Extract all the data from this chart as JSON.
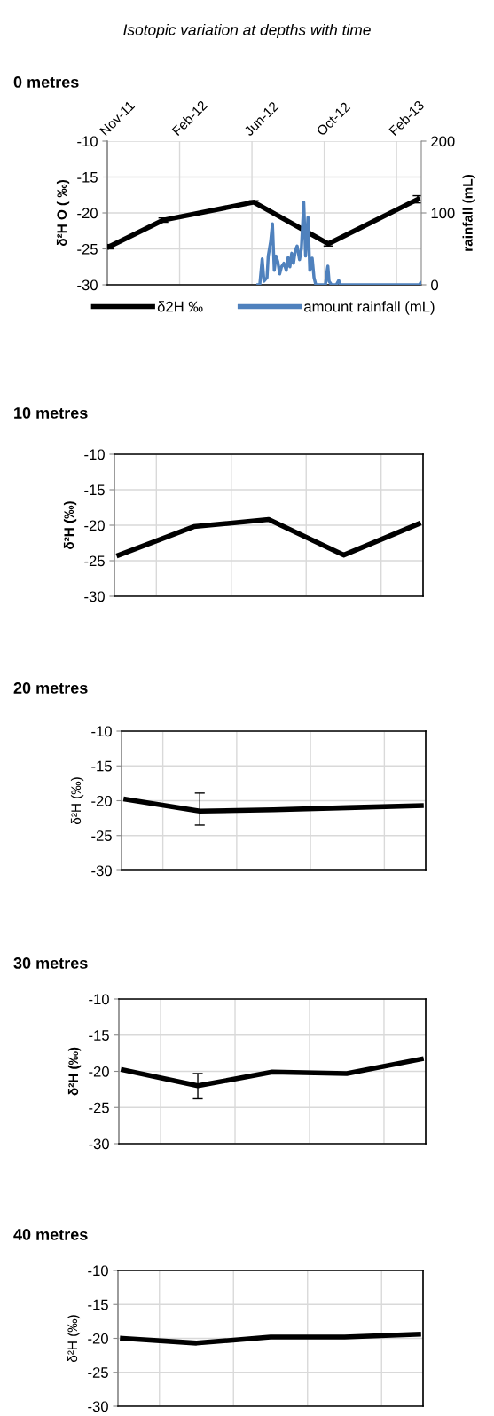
{
  "chart_data": [
    {
      "type": "line",
      "title": "Isotopic variation at depths with time",
      "subtitle": "0 metres",
      "ylabel": "δ²H O ( ‰)",
      "y2label": "rainfall (mL)",
      "xlim": [
        "2011-11-01",
        "2013-04-05"
      ],
      "xticks": [
        {
          "value": "2011-11-01",
          "label": "Nov-11"
        },
        {
          "value": "2012-02-29",
          "label": "Feb-12"
        },
        {
          "value": "2012-06-28",
          "label": "Jun-12"
        },
        {
          "value": "2012-10-26",
          "label": "Oct-12"
        },
        {
          "value": "2013-02-23",
          "label": "Feb-13"
        }
      ],
      "ylim": [
        -30,
        -10
      ],
      "yticks": [
        -30,
        -25,
        -20,
        -15,
        -10
      ],
      "y2lim": [
        0,
        200
      ],
      "y2ticks": [
        0,
        100,
        200
      ],
      "grid": true,
      "legend": "bottom",
      "marker": "none",
      "line_style": "solid",
      "series": [
        {
          "name": "δ2H ‰",
          "color": "#000000",
          "x": [
            "2011-11-04",
            "2012-02-02",
            "2012-07-01",
            "2012-11-02",
            "2013-03-30"
          ],
          "values": [
            -24.7,
            -21.0,
            -18.5,
            -24.3,
            -18.1
          ],
          "errors": [
            0.3,
            0.3,
            0.2,
            0.3,
            0.5
          ]
        },
        {
          "name": "amount rainfall (mL)",
          "color": "#4f81bd",
          "axis": "y2",
          "x": [
            "2012-07-08",
            "2012-07-11",
            "2012-07-15",
            "2012-07-18",
            "2012-07-23",
            "2012-07-25",
            "2012-07-29",
            "2012-08-01",
            "2012-08-04",
            "2012-08-07",
            "2012-08-10",
            "2012-08-13",
            "2012-08-16",
            "2012-08-20",
            "2012-08-24",
            "2012-08-27",
            "2012-08-30",
            "2012-09-02",
            "2012-09-05",
            "2012-09-08",
            "2012-09-11",
            "2012-09-15",
            "2012-09-18",
            "2012-09-22",
            "2012-09-25",
            "2012-09-29",
            "2012-10-02",
            "2012-10-06",
            "2012-10-09",
            "2012-10-12",
            "2012-10-28",
            "2012-10-30",
            "2012-11-01",
            "2012-11-03",
            "2012-11-07",
            "2012-11-15",
            "2012-11-19",
            "2012-11-22",
            "2013-04-02",
            "2013-04-04"
          ],
          "values": [
            0,
            0,
            36,
            5,
            10,
            40,
            60,
            85,
            20,
            40,
            32,
            15,
            25,
            30,
            20,
            38,
            25,
            44,
            30,
            48,
            54,
            35,
            50,
            115,
            40,
            94,
            20,
            37,
            10,
            0,
            0,
            15,
            26,
            5,
            0,
            0,
            6,
            0,
            0,
            3
          ]
        }
      ]
    },
    {
      "type": "line",
      "title": "10 metres",
      "ylabel": "δ²H (‰)",
      "tick_labels": "y",
      "categories": [
        null,
        null,
        null,
        null,
        null
      ],
      "ylim": [
        -30,
        -10
      ],
      "yticks": [
        -30,
        -25,
        -20,
        -15,
        -10
      ],
      "grid": true,
      "marker": "none",
      "line_style": "solid",
      "series": [
        {
          "color": "#000000",
          "values": [
            -24.2,
            -20.2,
            -19.2,
            -24.2,
            -19.8
          ]
        }
      ]
    },
    {
      "type": "line",
      "title": "20 metres",
      "ylabel": "δ²H (‰)",
      "tick_labels": "y",
      "categories": [
        null,
        null,
        null,
        null,
        null
      ],
      "ylim": [
        -30,
        -10
      ],
      "yticks": [
        -30,
        -25,
        -20,
        -15,
        -10
      ],
      "grid": true,
      "marker": "none",
      "line_style": "solid",
      "series": [
        {
          "color": "#000000",
          "values": [
            -19.8,
            -21.5,
            -21.3,
            -21.0,
            -20.7
          ],
          "errors": [
            null,
            [
              -23.5,
              -18.9
            ],
            null,
            null,
            null
          ]
        }
      ]
    },
    {
      "type": "line",
      "title": "30 metres",
      "ylabel": "δ²H (‰)",
      "tick_labels": "y",
      "categories": [
        null,
        null,
        null,
        null,
        null
      ],
      "ylim": [
        -30,
        -10
      ],
      "yticks": [
        -30,
        -25,
        -20,
        -15,
        -10
      ],
      "grid": true,
      "marker": "none",
      "line_style": "solid",
      "series": [
        {
          "color": "#000000",
          "values": [
            -19.8,
            -22.0,
            -20.1,
            -20.3,
            -18.3
          ],
          "errors": [
            null,
            [
              -23.8,
              -20.3
            ],
            null,
            null,
            null
          ]
        }
      ]
    },
    {
      "type": "line",
      "title": "40 metres",
      "ylabel": "δ²H (‰)",
      "tick_labels": "y",
      "categories": [
        null,
        null,
        null,
        null,
        null
      ],
      "ylim": [
        -30,
        -10
      ],
      "yticks": [
        -30,
        -25,
        -20,
        -15,
        -10
      ],
      "grid": true,
      "marker": "none",
      "line_style": "solid",
      "series": [
        {
          "color": "#000000",
          "values": [
            -20.0,
            -20.7,
            -19.8,
            -19.8,
            -19.4
          ]
        }
      ]
    }
  ]
}
